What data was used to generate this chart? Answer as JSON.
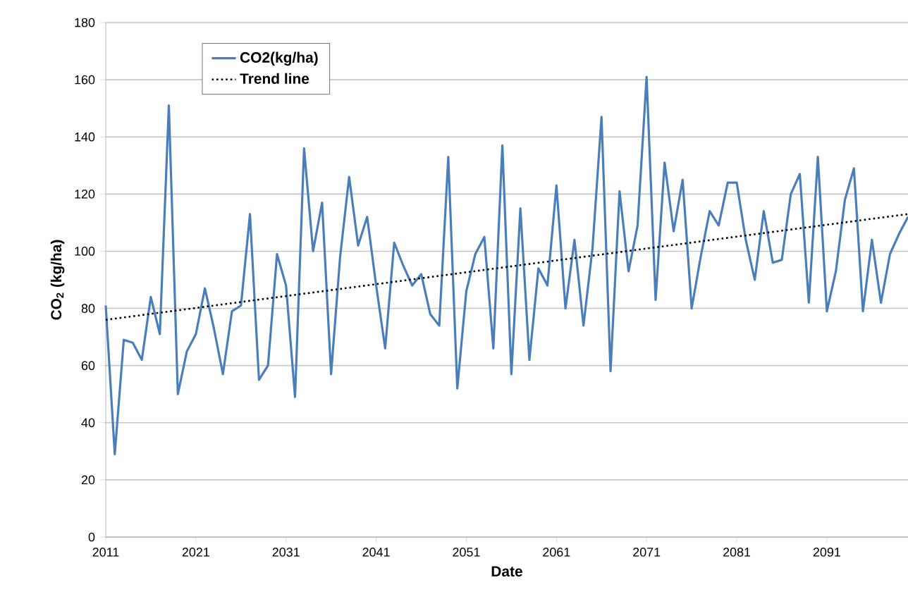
{
  "chart_data": {
    "type": "line",
    "xlabel": "Date",
    "ylabel": "CO$_{2}$ (kg/ha)",
    "x": [
      2011,
      2012,
      2013,
      2014,
      2015,
      2016,
      2017,
      2018,
      2019,
      2020,
      2021,
      2022,
      2023,
      2024,
      2025,
      2026,
      2027,
      2028,
      2029,
      2030,
      2031,
      2032,
      2033,
      2034,
      2035,
      2036,
      2037,
      2038,
      2039,
      2040,
      2041,
      2042,
      2043,
      2044,
      2045,
      2046,
      2047,
      2048,
      2049,
      2050,
      2051,
      2052,
      2053,
      2054,
      2055,
      2056,
      2057,
      2058,
      2059,
      2060,
      2061,
      2062,
      2063,
      2064,
      2065,
      2066,
      2067,
      2068,
      2069,
      2070,
      2071,
      2072,
      2073,
      2074,
      2075,
      2076,
      2077,
      2078,
      2079,
      2080,
      2081,
      2082,
      2083,
      2084,
      2085,
      2086,
      2087,
      2088,
      2089,
      2090,
      2091,
      2092,
      2093,
      2094,
      2095,
      2096,
      2097,
      2098,
      2099,
      2100
    ],
    "series": [
      {
        "name": "CO2(kg/ha)",
        "color": "#4a7ebb",
        "line_style": "solid",
        "values": [
          81,
          29,
          69,
          68,
          62,
          84,
          71,
          151,
          50,
          65,
          71,
          87,
          73,
          57,
          79,
          81,
          113,
          55,
          60,
          99,
          88,
          49,
          136,
          100,
          117,
          57,
          98,
          126,
          102,
          112,
          88,
          66,
          103,
          95,
          88,
          92,
          78,
          74,
          133,
          52,
          86,
          99,
          105,
          66,
          137,
          57,
          115,
          62,
          94,
          88,
          123,
          80,
          104,
          74,
          101,
          147,
          58,
          121,
          93,
          109,
          161,
          83,
          131,
          107,
          125,
          80,
          98,
          114,
          109,
          124,
          124,
          104,
          90,
          114,
          96,
          97,
          120,
          127,
          82,
          133,
          79,
          93,
          118,
          129,
          79,
          104,
          82,
          99,
          106,
          112
        ]
      },
      {
        "name": "Trend line",
        "color": "#000000",
        "line_style": "dotted",
        "x": [
          2011,
          2100
        ],
        "values": [
          76,
          113
        ]
      }
    ],
    "xlim": [
      2011,
      2100
    ],
    "xticks": [
      2011,
      2021,
      2031,
      2041,
      2051,
      2061,
      2071,
      2081,
      2091
    ],
    "ylim": [
      0,
      180
    ],
    "yticks": [
      0,
      20,
      40,
      60,
      80,
      100,
      120,
      140,
      160,
      180
    ],
    "grid": "y",
    "legend": "top left"
  }
}
